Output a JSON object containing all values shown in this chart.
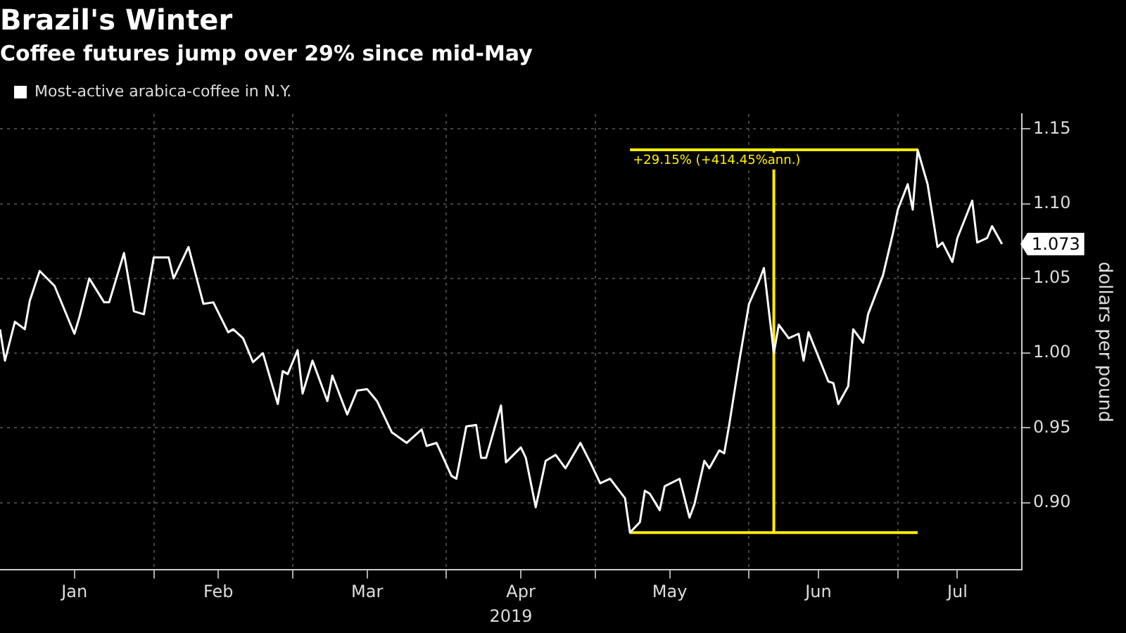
{
  "chart_data": {
    "type": "line",
    "title": "Brazil's Winter",
    "subtitle": "Coffee futures jump over 29% since mid-May",
    "xlabel": "2019",
    "ylabel": "dollars per pound",
    "xlim": [
      "2019-01-01",
      "2019-07-26"
    ],
    "xticks": [
      {
        "value": "2019-01-16",
        "label": "Jan"
      },
      {
        "value": "2019-02-01",
        "label": null
      },
      {
        "value": "2019-02-14",
        "label": "Feb"
      },
      {
        "value": "2019-03-01",
        "label": null
      },
      {
        "value": "2019-03-16",
        "label": "Mar"
      },
      {
        "value": "2019-04-01",
        "label": null
      },
      {
        "value": "2019-04-16",
        "label": "Apr"
      },
      {
        "value": "2019-05-01",
        "label": null
      },
      {
        "value": "2019-05-16",
        "label": "May"
      },
      {
        "value": "2019-06-01",
        "label": null
      },
      {
        "value": "2019-06-15",
        "label": "Jun"
      },
      {
        "value": "2019-07-01",
        "label": null
      },
      {
        "value": "2019-07-13",
        "label": "Jul"
      }
    ],
    "ylim": [
      0.855,
      1.16
    ],
    "yticks": [
      {
        "value": 0.9,
        "label": "0.90"
      },
      {
        "value": 0.95,
        "label": "0.95"
      },
      {
        "value": 1.0,
        "label": "1.00"
      },
      {
        "value": 1.05,
        "label": "1.05"
      },
      {
        "value": 1.1,
        "label": "1.10"
      },
      {
        "value": 1.15,
        "label": "1.15"
      }
    ],
    "grid": true,
    "legend": "top left",
    "marker": "none",
    "line_style": "solid",
    "series": [
      {
        "name": "Most-active arabica-coffee in N.Y.",
        "color": "#ffffff",
        "x": [
          "2019-01-01",
          "2019-01-02",
          "2019-01-04",
          "2019-01-06",
          "2019-01-07",
          "2019-01-09",
          "2019-01-12",
          "2019-01-14",
          "2019-01-16",
          "2019-01-17",
          "2019-01-19",
          "2019-01-22",
          "2019-01-23",
          "2019-01-26",
          "2019-01-28",
          "2019-01-30",
          "2019-02-01",
          "2019-02-04",
          "2019-02-05",
          "2019-02-08",
          "2019-02-11",
          "2019-02-13",
          "2019-02-16",
          "2019-02-17",
          "2019-02-19",
          "2019-02-21",
          "2019-02-23",
          "2019-02-26",
          "2019-02-27",
          "2019-02-28",
          "2019-03-02",
          "2019-03-03",
          "2019-03-05",
          "2019-03-08",
          "2019-03-09",
          "2019-03-12",
          "2019-03-14",
          "2019-03-16",
          "2019-03-18",
          "2019-03-21",
          "2019-03-24",
          "2019-03-27",
          "2019-03-28",
          "2019-03-30",
          "2019-04-02",
          "2019-04-03",
          "2019-04-05",
          "2019-04-07",
          "2019-04-08",
          "2019-04-09",
          "2019-04-12",
          "2019-04-13",
          "2019-04-16",
          "2019-04-17",
          "2019-04-19",
          "2019-04-21",
          "2019-04-23",
          "2019-04-25",
          "2019-04-28",
          "2019-04-30",
          "2019-05-02",
          "2019-05-04",
          "2019-05-07",
          "2019-05-08",
          "2019-05-10",
          "2019-05-11",
          "2019-05-12",
          "2019-05-14",
          "2019-05-15",
          "2019-05-18",
          "2019-05-20",
          "2019-05-21",
          "2019-05-23",
          "2019-05-24",
          "2019-05-26",
          "2019-05-27",
          "2019-05-28",
          "2019-05-30",
          "2019-06-01",
          "2019-06-03",
          "2019-06-04",
          "2019-06-06",
          "2019-06-07",
          "2019-06-09",
          "2019-06-11",
          "2019-06-12",
          "2019-06-13",
          "2019-06-17",
          "2019-06-18",
          "2019-06-19",
          "2019-06-21",
          "2019-06-22",
          "2019-06-24",
          "2019-06-25",
          "2019-06-28",
          "2019-06-30",
          "2019-07-01",
          "2019-07-03",
          "2019-07-04",
          "2019-07-05",
          "2019-07-07",
          "2019-07-09",
          "2019-07-10",
          "2019-07-12",
          "2019-07-13",
          "2019-07-16",
          "2019-07-17",
          "2019-07-19",
          "2019-07-20",
          "2019-07-22"
        ],
        "values": [
          1.016,
          0.995,
          1.021,
          1.016,
          1.035,
          1.055,
          1.045,
          1.029,
          1.013,
          1.024,
          1.05,
          1.034,
          1.034,
          1.067,
          1.028,
          1.026,
          1.064,
          1.064,
          1.05,
          1.071,
          1.033,
          1.034,
          1.014,
          1.016,
          1.01,
          0.994,
          1.0,
          0.966,
          0.988,
          0.986,
          1.002,
          0.973,
          0.995,
          0.968,
          0.985,
          0.959,
          0.975,
          0.976,
          0.968,
          0.947,
          0.94,
          0.949,
          0.938,
          0.94,
          0.918,
          0.916,
          0.951,
          0.952,
          0.93,
          0.93,
          0.965,
          0.927,
          0.937,
          0.93,
          0.897,
          0.928,
          0.932,
          0.923,
          0.94,
          0.927,
          0.913,
          0.916,
          0.903,
          0.88,
          0.887,
          0.908,
          0.906,
          0.895,
          0.911,
          0.916,
          0.89,
          0.899,
          0.928,
          0.923,
          0.935,
          0.933,
          0.952,
          0.994,
          1.033,
          1.048,
          1.057,
          1.0,
          1.019,
          1.01,
          1.013,
          0.995,
          1.014,
          0.981,
          0.98,
          0.966,
          0.978,
          1.016,
          1.007,
          1.026,
          1.052,
          1.08,
          1.096,
          1.113,
          1.096,
          1.136,
          1.113,
          1.071,
          1.074,
          1.061,
          1.077,
          1.102,
          1.074,
          1.077,
          1.085,
          1.073
        ]
      },
      {
        "color": "#ffee00",
        "x": [
          "2019-05-08",
          "2019-07-05"
        ],
        "values": [
          1.136,
          1.136
        ]
      },
      {
        "color": "#ffee00",
        "x": [
          "2019-06-06",
          "2019-06-06"
        ],
        "values": [
          1.136,
          0.88
        ]
      },
      {
        "color": "#ffee00",
        "x": [
          "2019-05-08",
          "2019-07-05"
        ],
        "values": [
          0.88,
          0.88
        ]
      }
    ],
    "annotations": [
      {
        "text": "+29.15% (+414.45%ann.)",
        "x": "2019-05-08",
        "y": 1.136
      },
      {
        "text": "1.073",
        "x": "2019-07-22",
        "y": 1.073
      }
    ]
  }
}
